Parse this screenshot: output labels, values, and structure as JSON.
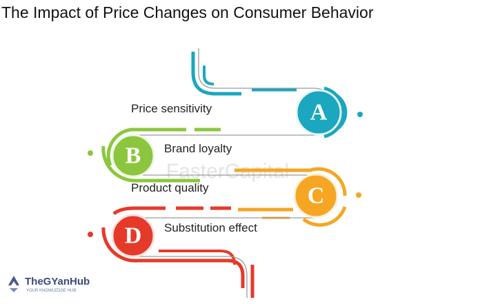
{
  "title": "The Impact of Price Changes on Consumer Behavior",
  "steps": [
    {
      "letter": "A",
      "label": "Price sensitivity"
    },
    {
      "letter": "B",
      "label": "Brand loyalty"
    },
    {
      "letter": "C",
      "label": "Product quality"
    },
    {
      "letter": "D",
      "label": "Substitution effect"
    }
  ],
  "watermark": "FasterCapital",
  "logo": {
    "name": "TheGYanHub",
    "tagline": "YOUR KNOWLEDGE HUB"
  }
}
